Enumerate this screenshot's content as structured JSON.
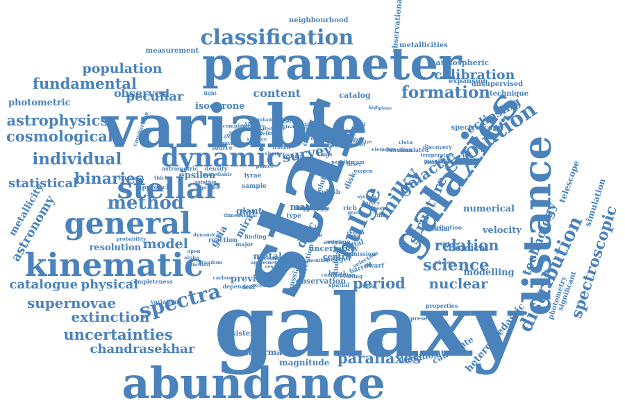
{
  "style": {
    "word_color": "#4a82bb",
    "background": "#ffffff"
  },
  "words": [
    "galaxy",
    "star",
    "variable",
    "abundance",
    "parameter",
    "galaxies",
    "distance",
    "kinematic",
    "general",
    "stellar",
    "dynamic",
    "classification",
    "evolution",
    "bulge",
    "method",
    "distribution",
    "spectra",
    "individual",
    "milky",
    "population",
    "fundamental",
    "formation",
    "calibration",
    "astrophysics",
    "cosmological",
    "binaries",
    "survey",
    "galactic",
    "structure",
    "science",
    "nuclear",
    "period",
    "relation",
    "model",
    "extinction",
    "uncertainties",
    "parallaxes",
    "supernovae",
    "catalogue",
    "physical",
    "chandrasekhar",
    "spectroscopic",
    "technology",
    "astronomy",
    "statistical",
    "metallicity",
    "peculiar",
    "observed",
    "content",
    "data",
    "disc",
    "eclipsing",
    "photometric",
    "velocity",
    "chemical",
    "modelling",
    "numerical",
    "isochrone",
    "previous",
    "resolution",
    "gaia",
    "mira",
    "neighbourhood",
    "measurement",
    "metallicities",
    "atmospheric",
    "observational",
    "unsupervised",
    "expansion",
    "technique",
    "catalog",
    "comparison",
    "spectroscopy",
    "telescope",
    "simulation",
    "photometry",
    "significant",
    "heteroskedastic",
    "candidate",
    "luminosity",
    "magnitude",
    "information",
    "consistent",
    "variation",
    "completeness",
    "dependent",
    "observation",
    "correction",
    "gaussian",
    "studies",
    "uncertainty",
    "centre",
    "local",
    "metal",
    "merger",
    "dwarf",
    "radial",
    "barred",
    "matter",
    "giant",
    "rich",
    "type",
    "disk",
    "sample",
    "lyrae",
    "epsilon",
    "approach",
    "astrometric",
    "density",
    "average",
    "rave",
    "event",
    "splash",
    "cent",
    "cluster",
    "absolute",
    "source",
    "function",
    "properties",
    "simulated",
    "potential",
    "angular",
    "reaction",
    "finding",
    "major",
    "spheroidal",
    "discovery",
    "contribution",
    "vista",
    "possible",
    "present",
    "dimensional",
    "emission",
    "selection",
    "spatial",
    "thick",
    "velocities",
    "dynamical",
    "probability",
    "temperature",
    "solution",
    "magellanic",
    "agreement",
    "member",
    "origin",
    "region",
    "mass",
    "group",
    "high",
    "plane",
    "light",
    "open",
    "complementary",
    "contamination",
    "gravitational",
    "cosmic",
    "tidal",
    "stream",
    "halo",
    "clump",
    "transit",
    "shorter",
    "planet",
    "alpha",
    "motion",
    "proper",
    "parallax",
    "elements",
    "color",
    "photon",
    "mixture",
    "random",
    "carbon",
    "field",
    "excess",
    "result",
    "investigation",
    "combination",
    "evolving",
    "inner",
    "negative",
    "oxygen",
    "system",
    "survey",
    "test",
    "line",
    "background",
    "independent",
    "methodology",
    "dimension",
    "neutron",
    "axis",
    "binary",
    "model",
    "distance",
    "satellite",
    "surface",
    "bright",
    "faint",
    "orbit",
    "spiral",
    "boundary",
    "core",
    "brightness",
    "dark",
    "dust",
    "ratio",
    "cepheid",
    "thin",
    "youth",
    "metallicity",
    "lensing",
    "spectral",
    "catalogues"
  ]
}
